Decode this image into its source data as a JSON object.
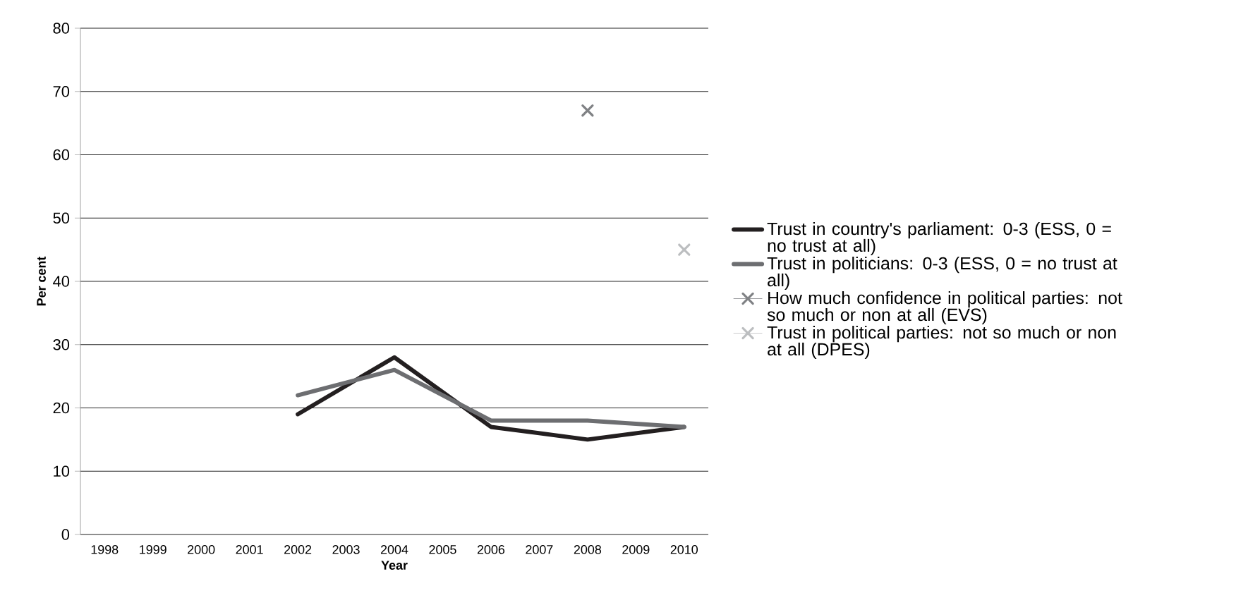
{
  "chart_data": {
    "type": "line",
    "xlabel": "Year",
    "ylabel": "Per cent",
    "xlim": [
      1997.5,
      2010.5
    ],
    "xticks": [
      1998,
      1999,
      2000,
      2001,
      2002,
      2003,
      2004,
      2005,
      2006,
      2007,
      2008,
      2009,
      2010
    ],
    "ylim": [
      0,
      80
    ],
    "yticks": [
      0,
      10,
      20,
      30,
      40,
      50,
      60,
      70,
      80
    ],
    "grid": "y",
    "legend": "right",
    "series": [
      {
        "name": "Trust in country's parliament: 0-3 (ESS, 0 = no trust at all)",
        "color": "#231f20",
        "marker": "none",
        "x": [
          2002,
          2004,
          2006,
          2008,
          2010
        ],
        "values": [
          19,
          28,
          17,
          15,
          17
        ]
      },
      {
        "name": "Trust in politicians: 0-3 (ESS, 0 = no trust at all)",
        "color": "#6d6e71",
        "marker": "none",
        "x": [
          2002,
          2004,
          2006,
          2008,
          2010
        ],
        "values": [
          22,
          26,
          18,
          18,
          17
        ]
      },
      {
        "name": "How much confidence in political parties: not so much or non at all (EVS)",
        "type": "scatter",
        "color": "#808285",
        "marker": "cross",
        "x": [
          2008
        ],
        "values": [
          67
        ]
      },
      {
        "name": "Trust in political parties: not so much or non at all (DPES)",
        "type": "scatter",
        "color": "#bcbec0",
        "marker": "cross",
        "x": [
          2010
        ],
        "values": [
          45
        ]
      }
    ]
  }
}
